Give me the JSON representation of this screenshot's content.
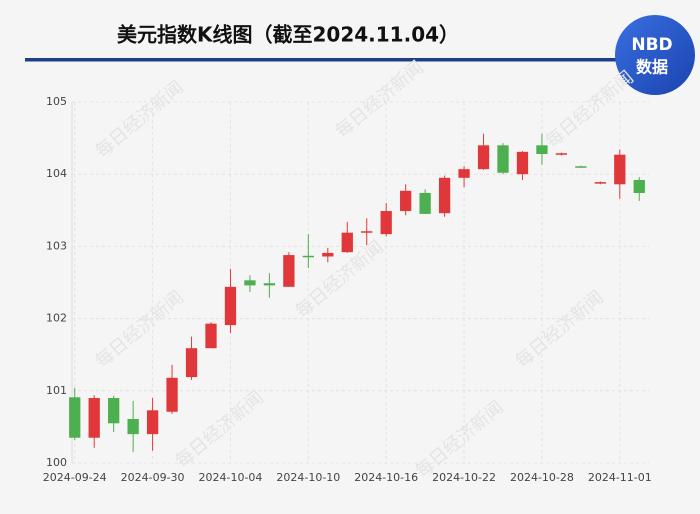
{
  "chart_data": {
    "type": "candlestick",
    "title": "美元指数K线图（截至2024.11.04）",
    "logo": {
      "top": "NBD",
      "bottom": "数据"
    },
    "watermark": "每日经济新闻",
    "categories": [
      "2024-09-24",
      null,
      null,
      null,
      "2024-09-30",
      null,
      null,
      null,
      "2024-10-04",
      null,
      null,
      null,
      "2024-10-10",
      null,
      null,
      null,
      "2024-10-16",
      null,
      null,
      null,
      "2024-10-22",
      null,
      null,
      null,
      "2024-10-28",
      null,
      null,
      null,
      "2024-11-01",
      null
    ],
    "open": [
      100.91,
      100.35,
      100.9,
      100.61,
      100.4,
      100.71,
      101.19,
      101.59,
      101.91,
      102.53,
      102.49,
      102.44,
      102.87,
      102.86,
      102.92,
      103.19,
      103.17,
      103.49,
      103.74,
      103.46,
      103.95,
      104.07,
      104.4,
      104.0,
      104.4,
      104.28,
      104.11,
      103.87,
      103.86,
      103.92
    ],
    "high": [
      101.04,
      100.94,
      100.93,
      100.86,
      100.9,
      101.36,
      101.75,
      101.95,
      102.69,
      102.6,
      102.63,
      102.92,
      103.17,
      102.98,
      103.34,
      103.39,
      103.6,
      103.86,
      103.79,
      103.98,
      104.11,
      104.56,
      104.43,
      104.32,
      104.56,
      104.3,
      104.12,
      103.9,
      104.34,
      103.96
    ],
    "low": [
      100.32,
      100.21,
      100.43,
      100.15,
      100.17,
      100.68,
      101.15,
      101.59,
      101.8,
      102.37,
      102.29,
      102.44,
      102.7,
      102.78,
      102.91,
      103.02,
      103.14,
      103.43,
      103.45,
      103.41,
      103.82,
      104.06,
      104.0,
      103.92,
      104.13,
      104.26,
      104.09,
      103.86,
      103.66,
      103.63
    ],
    "close": [
      100.35,
      100.9,
      100.55,
      100.4,
      100.73,
      101.18,
      101.59,
      101.93,
      102.44,
      102.46,
      102.46,
      102.88,
      102.86,
      102.91,
      103.19,
      103.21,
      103.49,
      103.77,
      103.45,
      103.95,
      104.07,
      104.4,
      104.02,
      104.31,
      104.28,
      104.29,
      104.1,
      103.89,
      104.27,
      103.74
    ],
    "up_color": "#e0383a",
    "down_color": "#4caf50",
    "ylim": [
      100,
      105
    ],
    "yticks": [
      100,
      101,
      102,
      103,
      104,
      105
    ],
    "grid": true
  }
}
